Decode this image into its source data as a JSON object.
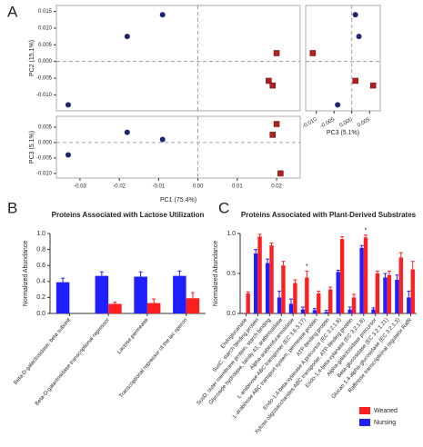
{
  "chart_data": [
    {
      "type": "scatter",
      "panel_label": "A",
      "y_label": "PC2 (15.1%)",
      "xlim": [
        -0.036,
        0.026
      ],
      "ylim": [
        -0.0148,
        0.0168
      ],
      "yticks": [
        0.015,
        {
          "value": 0.01,
          "label": "0.010"
        },
        0.005,
        {
          "value": 0,
          "label": "0.000"
        },
        -0.005,
        {
          "value": -0.01,
          "label": "-0.010"
        }
      ],
      "zero_lines": true,
      "series": [
        {
          "color": "#1c2473",
          "marker": "circle",
          "x": [
            -0.033,
            -0.018,
            -0.009
          ],
          "values": [
            -0.013,
            0.0075,
            0.014
          ]
        },
        {
          "color": "#b3201f",
          "marker": "square",
          "x": [
            0.02,
            0.018,
            0.019
          ],
          "values": [
            0.0025,
            -0.0058,
            -0.0072
          ]
        }
      ]
    },
    {
      "type": "scatter",
      "x_label": "PC3 (5.1%)",
      "xlim": [
        -0.013,
        0.008
      ],
      "ylim": [
        -0.0148,
        0.0168
      ],
      "xticks": [
        {
          "value": -0.01,
          "label": "-0.010"
        },
        -0.005,
        {
          "value": 0,
          "label": "0.000"
        },
        0.005
      ],
      "zero_lines": true,
      "series": [
        {
          "color": "#1c2473",
          "marker": "circle",
          "x": [
            0.001,
            0.002,
            -0.004
          ],
          "values": [
            0.014,
            0.0075,
            -0.013
          ]
        },
        {
          "color": "#b3201f",
          "marker": "square",
          "x": [
            -0.011,
            0.001,
            0.006
          ],
          "values": [
            0.0025,
            -0.0058,
            -0.0072
          ]
        }
      ]
    },
    {
      "type": "scatter",
      "x_label": "PC1 (75.4%)",
      "y_label": "PC3 (5.1%)",
      "xlim": [
        -0.036,
        0.026
      ],
      "ylim": [
        -0.0115,
        0.0085
      ],
      "xticks": [
        -0.03,
        -0.02,
        -0.01,
        {
          "value": 0,
          "label": "0.00"
        },
        0.01,
        0.02
      ],
      "yticks": [
        0.005,
        {
          "value": 0,
          "label": "0.000"
        },
        -0.005,
        {
          "value": -0.01,
          "label": "-0.010"
        }
      ],
      "zero_lines": true,
      "series": [
        {
          "color": "#1c2473",
          "marker": "circle",
          "x": [
            -0.033,
            -0.018,
            -0.009
          ],
          "values": [
            -0.004,
            0.0033,
            0.001
          ]
        },
        {
          "color": "#b3201f",
          "marker": "square",
          "x": [
            0.02,
            0.019,
            0.021
          ],
          "values": [
            0.006,
            0.0025,
            -0.01
          ]
        }
      ]
    },
    {
      "type": "bar",
      "panel_label": "B",
      "title": "Proteins Associated with Lactose Utilization",
      "y_label": "Normalized Abundance",
      "ylim": [
        0,
        1
      ],
      "yticks": [
        {
          "value": 0,
          "label": "0.0"
        },
        0.2,
        0.4,
        0.6,
        0.8,
        {
          "value": 1,
          "label": "1.0"
        }
      ],
      "categories": [
        "Beta-D-galactosidase, beta subunit",
        "Beta-D-galactosidase transcriptional repressor",
        "Lactose permease",
        "Transcriptional repressor of the lac operon"
      ],
      "series": [
        {
          "color": "#1f1fff",
          "values": [
            0.39,
            0.47,
            0.46,
            0.47
          ],
          "errors": [
            0.05,
            0.05,
            0.06,
            0.06
          ]
        },
        {
          "color": "#ff1f1f",
          "values": [
            null,
            0.12,
            0.13,
            0.19
          ],
          "errors": [
            null,
            0.02,
            0.05,
            0.07
          ]
        }
      ]
    },
    {
      "type": "bar",
      "panel_label": "C",
      "title": "Proteins Associated with Plant-Derived Substrates",
      "y_label": "Normalized Abundance",
      "ylim": [
        0,
        1
      ],
      "yticks": [
        {
          "value": 0,
          "label": "0.0"
        },
        0.5,
        {
          "value": 1,
          "label": "1.0"
        }
      ],
      "categories": [
        "Endoglucanase",
        "SusC, starch binding protein",
        "SusD, outer membrane protein, starch binding",
        "Glycoside hydrolase, family 43, arabinosidase",
        "Alpha-arabinofuranosidase",
        "L-arabinose ABC transporter (EC 3.6.3.17)",
        "L-arabinose ABC transport system, permease protein",
        "ATP-binding protein",
        "Endo-1,4-beta-xylanase A precursor (EC 3.2.1.8)",
        "Xylose oligosaccharides ABC transporter, ATP-binding protein",
        "Endo-1,4-beta-xylanase (EC 3.2.1.8)",
        "Alpha-galactosidase precursor",
        "Beta-glucosidase (EC 3.2.1.21)",
        "Glucan 1,4-alpha-glucosidase (EC 3.2.1.3)",
        "Raffinose transcriptional regulator RafR"
      ],
      "series": [
        {
          "name": "Nursing",
          "color": "#1f1fff",
          "values": [
            null,
            0.75,
            0.63,
            0.2,
            0.12,
            0.05,
            0.04,
            0.02,
            0.52,
            0.05,
            0.82,
            0.05,
            0.45,
            0.42,
            0.2
          ],
          "errors": [
            null,
            0.05,
            0.05,
            0.08,
            0.06,
            0.03,
            0.02,
            0.02,
            0.02,
            0.03,
            0.03,
            0.02,
            0.05,
            0.06,
            0.08
          ]
        },
        {
          "name": "Weaned",
          "color": "#ff1f1f",
          "values": [
            0.25,
            0.96,
            0.85,
            0.6,
            0.38,
            0.45,
            0.25,
            0.3,
            0.93,
            0.2,
            0.95,
            0.5,
            0.48,
            0.7,
            0.55
          ],
          "errors": [
            0.02,
            0.03,
            0.03,
            0.05,
            0.04,
            0.08,
            0.03,
            0.03,
            0.03,
            0.04,
            0.03,
            0.03,
            0.05,
            0.06,
            0.1
          ]
        }
      ],
      "annotations": [
        {
          "text": "*",
          "category": "L-arabinose ABC transporter (EC 3.6.3.17)"
        },
        {
          "text": "*",
          "category": "Endo-1,4-beta-xylanase (EC 3.2.1.8)"
        }
      ]
    }
  ]
}
